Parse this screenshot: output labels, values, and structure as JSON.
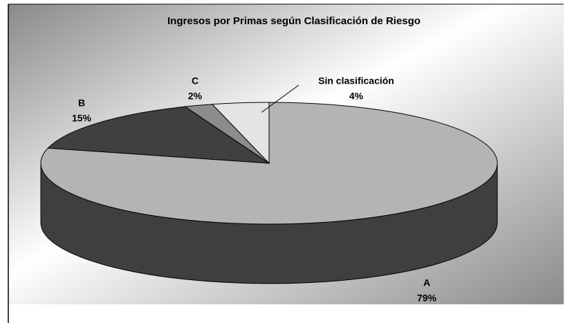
{
  "chart_data": {
    "type": "pie",
    "title": "Ingresos por Primas según Clasificación de Riesgo",
    "categories": [
      "A",
      "B",
      "C",
      "Sin clasificación"
    ],
    "values": [
      79,
      15,
      2,
      4
    ],
    "value_labels": [
      "79%",
      "15%",
      "2%",
      "4%"
    ],
    "colors": [
      "#b4b4b4",
      "#404040",
      "#8c8c8c",
      "#e4e4e4"
    ],
    "start_angle": "top",
    "direction": "clockwise",
    "three_d": true
  }
}
